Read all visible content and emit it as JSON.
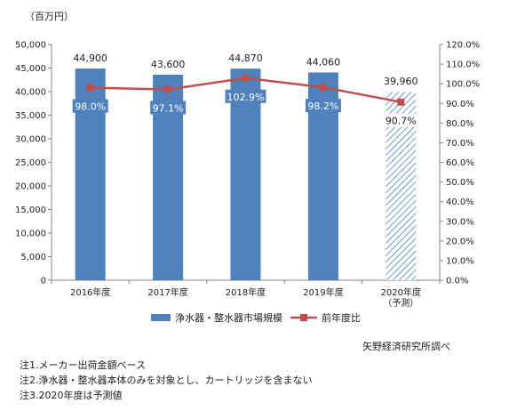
{
  "chart_data": {
    "type": "bar",
    "unit_label": "（百万円）",
    "categories": [
      "2016年度",
      "2017年度",
      "2018年度",
      "2019年度",
      "2020年度"
    ],
    "category_sublabels": [
      "",
      "",
      "",
      "",
      "（予測）"
    ],
    "series": [
      {
        "name": "浄水器・整水器市場規模",
        "type": "bar",
        "axis": "left",
        "values": [
          44900,
          43600,
          44870,
          44060,
          39960
        ],
        "value_labels": [
          "44,900",
          "43,600",
          "44,870",
          "44,060",
          "39,960"
        ],
        "color": "#4F81BD",
        "forecast_index": 4,
        "forecast_pattern": "diagonal-hatch"
      },
      {
        "name": "前年度比",
        "type": "line",
        "axis": "right",
        "values": [
          98.0,
          97.1,
          102.9,
          98.2,
          90.7
        ],
        "value_labels": [
          "98.0%",
          "97.1%",
          "102.9%",
          "98.2%",
          "90.7%"
        ],
        "color": "#C0504D",
        "marker": "square"
      }
    ],
    "y_left": {
      "min": 0,
      "max": 50000,
      "step": 5000,
      "tick_labels": [
        "0",
        "5,000",
        "10,000",
        "15,000",
        "20,000",
        "25,000",
        "30,000",
        "35,000",
        "40,000",
        "45,000",
        "50,000"
      ]
    },
    "y_right": {
      "min": 0,
      "max": 120,
      "step": 10,
      "tick_labels": [
        "0.0%",
        "10.0%",
        "20.0%",
        "30.0%",
        "40.0%",
        "50.0%",
        "60.0%",
        "70.0%",
        "80.0%",
        "90.0%",
        "100.0%",
        "110.0%",
        "120.0%"
      ]
    },
    "grid": false,
    "legend_position": "bottom"
  },
  "source": "矢野経済研究所調べ",
  "notes": [
    "注1.メーカー出荷金額ベース",
    "注2.浄水器・整水器本体のみを対象とし、カートリッジを含まない",
    "注3.2020年度は予測値"
  ]
}
